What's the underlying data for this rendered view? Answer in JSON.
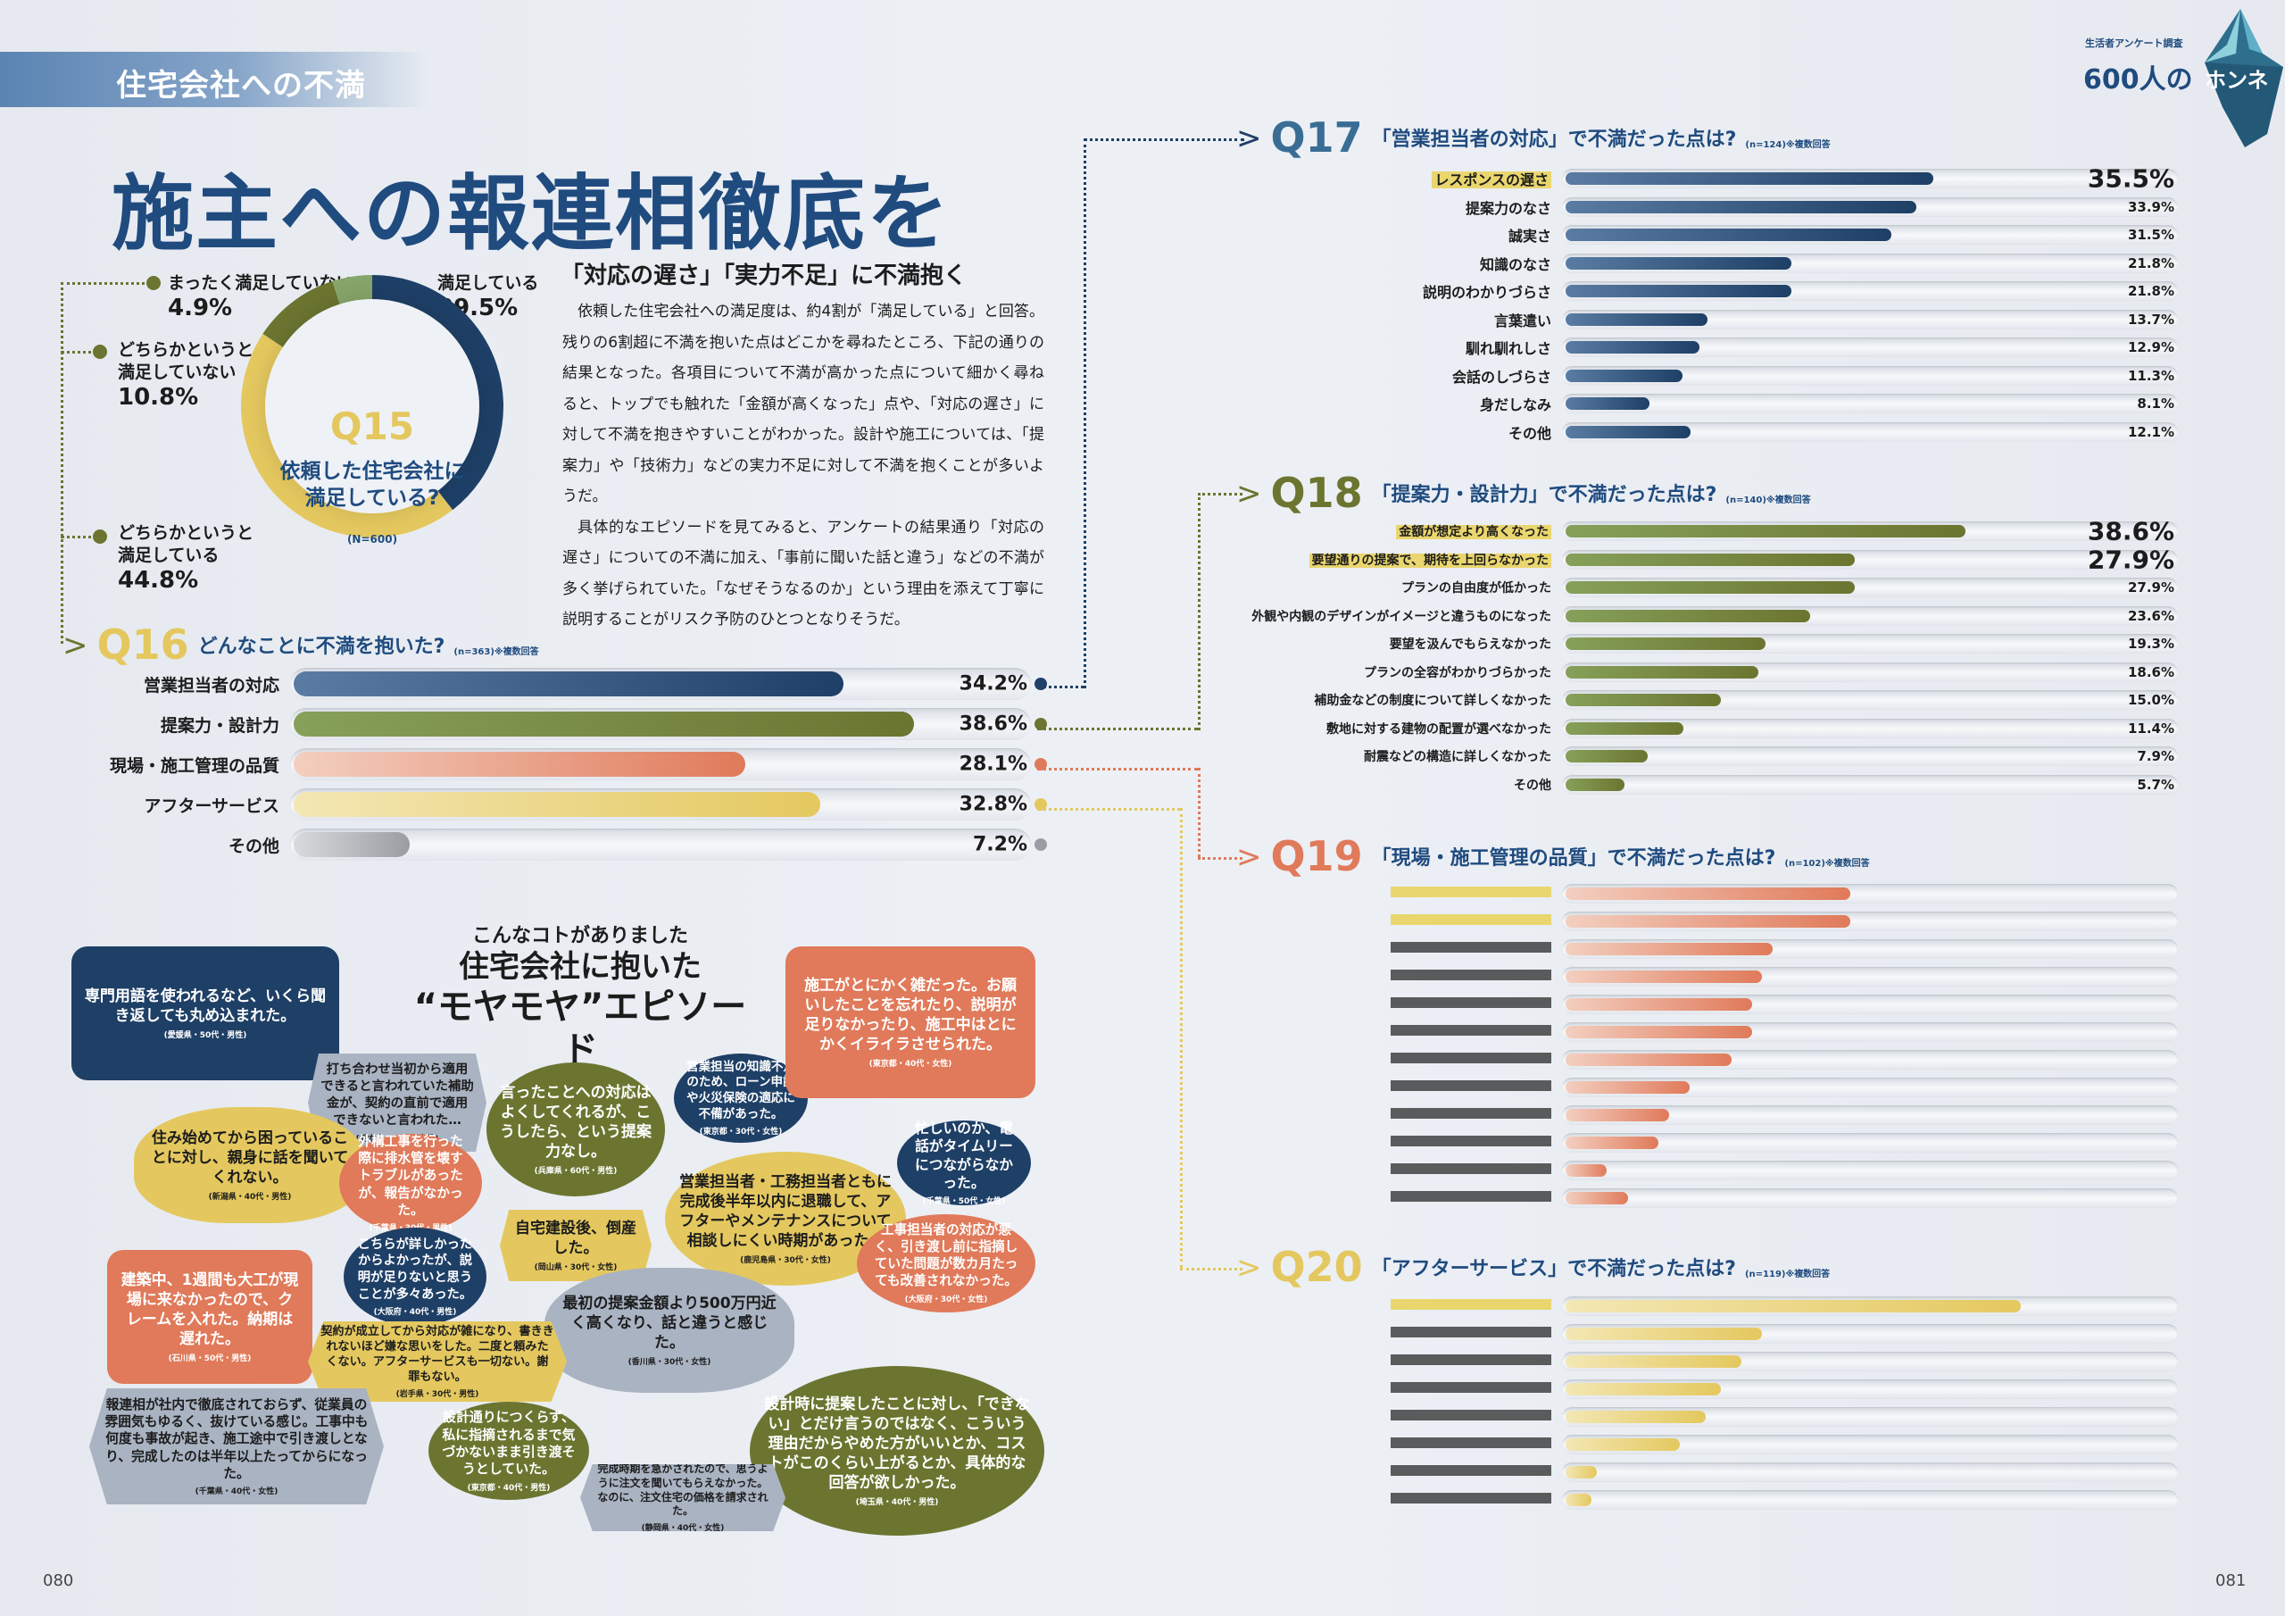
{
  "section_label": "住宅会社への不満",
  "headline": "施主への報連相徹底を",
  "badge": {
    "top": "生活者アンケート調査",
    "main_num": "600人の",
    "main_word": "ホンネ"
  },
  "q15": {
    "number": "Q15",
    "title_line1": "依頼した住宅会社に",
    "title_line2": "満足している?",
    "n": "(N=600)",
    "slices": [
      {
        "label_line1": "満足している",
        "label_line2": "",
        "value": 39.5,
        "pct": "39.5%",
        "color": "#1e3f66"
      },
      {
        "label_line1": "どちらかというと",
        "label_line2": "満足している",
        "value": 44.8,
        "pct": "44.8%",
        "color": "#e4c85f"
      },
      {
        "label_line1": "どちらかというと",
        "label_line2": "満足していない",
        "value": 10.8,
        "pct": "10.8%",
        "color": "#6b7530"
      },
      {
        "label_line1": "まったく満足していない",
        "label_line2": "",
        "value": 4.9,
        "pct": "4.9%",
        "color": "#86a56a"
      }
    ]
  },
  "article": {
    "subhead": "「対応の遅さ」「実力不足」に不満抱く",
    "paragraphs": [
      "依頼した住宅会社への満足度は、約4割が「満足している」と回答。残りの6割超に不満を抱いた点はどこかを尋ねたところ、下記の通りの結果となった。各項目について不満が高かった点について細かく尋ねると、トップでも触れた「金額が高くなった」点や、「対応の遅さ」に対して不満を抱きやすいことがわかった。設計や施工については、「提案力」や「技術力」などの実力不足に対して不満を抱くことが多いようだ。",
      "具体的なエピソードを見てみると、アンケートの結果通り「対応の遅さ」についての不満に加え、「事前に聞いた話と違う」などの不満が多く挙げられていた。「なぜそうなるのか」という理由を添えて丁寧に説明することがリスク予防のひとつとなりそうだ。"
    ]
  },
  "q16": {
    "number": "Q16",
    "title": "どんなことに不満を抱いた?",
    "note": "(n=363)※複数回答",
    "max": 40,
    "items": [
      {
        "label": "営業担当者の対応",
        "value": 34.2,
        "pct": "34.2%",
        "color": "#1e3f66",
        "from": "#5a7ca3"
      },
      {
        "label": "提案力・設計力",
        "value": 38.6,
        "pct": "38.6%",
        "color": "#6b7530",
        "from": "#86a05a"
      },
      {
        "label": "現場・施工管理の品質",
        "value": 28.1,
        "pct": "28.1%",
        "color": "#e07a5a",
        "from": "#f3cfc0"
      },
      {
        "label": "アフターサービス",
        "value": 32.8,
        "pct": "32.8%",
        "color": "#e4c85f",
        "from": "#f3e7b4"
      },
      {
        "label": "その他",
        "value": 7.2,
        "pct": "7.2%",
        "color": "#9a9da2",
        "from": "#d8dadd"
      }
    ]
  },
  "q17": {
    "number": "Q17",
    "title": "「営業担当者の対応」で不満だった点は?",
    "note": "(n=124)※複数回答",
    "color": "#1e3f66",
    "from": "#5a7ca3",
    "max": 50,
    "items": [
      {
        "label": "レスポンスの遅さ",
        "value": 35.5,
        "pct": "35.5%",
        "highlight": true
      },
      {
        "label": "提案力のなさ",
        "value": 33.9,
        "pct": "33.9%"
      },
      {
        "label": "誠実さ",
        "value": 31.5,
        "pct": "31.5%"
      },
      {
        "label": "知識のなさ",
        "value": 21.8,
        "pct": "21.8%"
      },
      {
        "label": "説明のわかりづらさ",
        "value": 21.8,
        "pct": "21.8%"
      },
      {
        "label": "言葉遣い",
        "value": 13.7,
        "pct": "13.7%"
      },
      {
        "label": "馴れ馴れしさ",
        "value": 12.9,
        "pct": "12.9%"
      },
      {
        "label": "会話のしづらさ",
        "value": 11.3,
        "pct": "11.3%"
      },
      {
        "label": "身だしなみ",
        "value": 8.1,
        "pct": "8.1%"
      },
      {
        "label": "その他",
        "value": 12.1,
        "pct": "12.1%"
      }
    ]
  },
  "q18": {
    "number": "Q18",
    "title": "「提案力・設計力」で不満だった点は?",
    "note": "(n=140)※複数回答",
    "color": "#6b7530",
    "from": "#86a05a",
    "max": 50,
    "items": [
      {
        "label": "金額が想定より高くなった",
        "value": 38.6,
        "pct": "38.6%",
        "highlight": true
      },
      {
        "label": "要望通りの提案で、期待を上回らなかった",
        "value": 27.9,
        "pct": "27.9%",
        "highlight": true
      },
      {
        "label": "プランの自由度が低かった",
        "value": 27.9,
        "pct": "27.9%"
      },
      {
        "label": "外観や内観のデザインがイメージと違うものになった",
        "value": 23.6,
        "pct": "23.6%"
      },
      {
        "label": "要望を汲んでもらえなかった",
        "value": 19.3,
        "pct": "19.3%"
      },
      {
        "label": "プランの全容がわかりづらかった",
        "value": 18.6,
        "pct": "18.6%"
      },
      {
        "label": "補助金などの制度について詳しくなかった",
        "value": 15.0,
        "pct": "15.0%"
      },
      {
        "label": "敷地に対する建物の配置が選べなかった",
        "value": 11.4,
        "pct": "11.4%"
      },
      {
        "label": "耐震などの構造に詳しくなかった",
        "value": 7.9,
        "pct": "7.9%"
      },
      {
        "label": "その他",
        "value": 5.7,
        "pct": "5.7%"
      }
    ]
  },
  "q19": {
    "number": "Q19",
    "title": "「現場・施工管理の品質」で不満だった点は?",
    "note": "(n=102)※複数回答",
    "color": "#e07a5a",
    "from": "#f3cfc0",
    "max": 50,
    "items": [
      {
        "label": "",
        "value": 27.5,
        "pct": "",
        "highlight": true
      },
      {
        "label": "",
        "value": 27.5,
        "pct": "",
        "highlight": true
      },
      {
        "label": "",
        "value": 20,
        "pct": ""
      },
      {
        "label": "",
        "value": 19,
        "pct": ""
      },
      {
        "label": "",
        "value": 18,
        "pct": ""
      },
      {
        "label": "",
        "value": 18,
        "pct": ""
      },
      {
        "label": "",
        "value": 16,
        "pct": ""
      },
      {
        "label": "",
        "value": 12,
        "pct": ""
      },
      {
        "label": "",
        "value": 10,
        "pct": ""
      },
      {
        "label": "",
        "value": 9,
        "pct": ""
      },
      {
        "label": "",
        "value": 4,
        "pct": ""
      },
      {
        "label": "",
        "value": 6,
        "pct": ""
      }
    ]
  },
  "q20": {
    "number": "Q20",
    "title": "「アフターサービス」で不満だった点は?",
    "note": "(n=119)※複数回答",
    "color": "#e4c85f",
    "from": "#f3e7b4",
    "max": 50,
    "items": [
      {
        "label": "",
        "value": 44,
        "pct": "",
        "highlight": true
      },
      {
        "label": "",
        "value": 19,
        "pct": ""
      },
      {
        "label": "",
        "value": 17,
        "pct": ""
      },
      {
        "label": "",
        "value": 15,
        "pct": ""
      },
      {
        "label": "",
        "value": 13.5,
        "pct": ""
      },
      {
        "label": "",
        "value": 11,
        "pct": ""
      },
      {
        "label": "",
        "value": 3,
        "pct": ""
      },
      {
        "label": "",
        "value": 2.5,
        "pct": ""
      }
    ]
  },
  "episodes": {
    "kicker": "こんなコトがありました",
    "title_line1": "住宅会社に抱いた",
    "title_line2": "“モヤモヤ”エピソード",
    "items": [
      {
        "text": "専門用語を使われるなど、いくら聞き返しても丸め込まれた。",
        "who": "(愛媛県・50代・男性)",
        "color": "#1e3f66",
        "fg": "#ffffff"
      },
      {
        "text": "打ち合わせ当初から適用できると言われていた補助金が、契約の直前で適用できないと言われた…",
        "who": "(栃木県・30代・女性)",
        "color": "#a9b3c2",
        "fg": "#1c1c1c"
      },
      {
        "text": "言ったことへの対応はよくしてくれるが、こうしたら、という提案力なし。",
        "who": "(兵庫県・60代・男性)",
        "color": "#6b7530",
        "fg": "#ffffff"
      },
      {
        "text": "営業担当の知識不足のため、ローン申請や火災保険の適応に不備があった。",
        "who": "(東京都・30代・女性)",
        "color": "#1e3f66",
        "fg": "#ffffff"
      },
      {
        "text": "施工がとにかく雑だった。お願いしたことを忘れたり、説明が足りなかったり、施工中はとにかくイライラさせられた。",
        "who": "(東京都・40代・女性)",
        "color": "#e07a5a",
        "fg": "#ffffff"
      },
      {
        "text": "住み始めてから困っていることに対し、親身に話を聞いてくれない。",
        "who": "(新潟県・40代・男性)",
        "color": "#e4c85f",
        "fg": "#1c1c1c"
      },
      {
        "text": "外構工事を行った際に排水管を壊すトラブルがあったが、報告がなかった。",
        "who": "(千葉県・30代・男性)",
        "color": "#e07a5a",
        "fg": "#ffffff"
      },
      {
        "text": "営業担当者・工務担当者ともに完成後半年以内に退職して、アフターやメンテナンスについて相談しにくい時期があった。",
        "who": "(鹿児島県・30代・女性)",
        "color": "#e4c85f",
        "fg": "#1c1c1c"
      },
      {
        "text": "忙しいのか、電話がタイムリーにつながらなかった。",
        "who": "(千葉県・50代・女性)",
        "color": "#1e3f66",
        "fg": "#ffffff"
      },
      {
        "text": "自宅建設後、倒産した。",
        "who": "(岡山県・30代・女性)",
        "color": "#e4c85f",
        "fg": "#1c1c1c"
      },
      {
        "text": "こちらが詳しかったからよかったが、説明が足りないと思うことが多々あった。",
        "who": "(大阪府・40代・男性)",
        "color": "#1e3f66",
        "fg": "#ffffff"
      },
      {
        "text": "建築中、1週間も大工が現場に来なかったので、クレームを入れた。納期は遅れた。",
        "who": "(石川県・50代・男性)",
        "color": "#e07a5a",
        "fg": "#ffffff"
      },
      {
        "text": "最初の提案金額より500万円近く高くなり、話と違うと感じた。",
        "who": "(香川県・30代・女性)",
        "color": "#a9b3c2",
        "fg": "#1c1c1c"
      },
      {
        "text": "工事担当者の対応が悪く、引き渡し前に指摘していた問題が数カ月たっても改善されなかった。",
        "who": "(大阪府・30代・女性)",
        "color": "#e07a5a",
        "fg": "#ffffff"
      },
      {
        "text": "契約が成立してから対応が雑になり、書ききれないほど嫌な思いをした。二度と頼みたくない。アフターサービスも一切ない。謝罪もない。",
        "who": "(岩手県・30代・男性)",
        "color": "#e4c85f",
        "fg": "#1c1c1c"
      },
      {
        "text": "設計時に提案したことに対し、「できない」とだけ言うのではなく、こういう理由だからやめた方がいいとか、コストがこのくらい上がるとか、具体的な回答が欲しかった。",
        "who": "(埼玉県・40代・男性)",
        "color": "#6b7530",
        "fg": "#ffffff"
      },
      {
        "text": "報連相が社内で徹底されておらず、従業員の雰囲気もゆるく、抜けている感じ。工事中も何度も事故が起き、施工途中で引き渡しとなり、完成したのは半年以上たってからになった。",
        "who": "(千葉県・40代・女性)",
        "color": "#a9b3c2",
        "fg": "#1c1c1c"
      },
      {
        "text": "設計通りにつくらず、私に指摘されるまで気づかないまま引き渡そうとしていた。",
        "who": "(東京都・40代・男性)",
        "color": "#6b7530",
        "fg": "#ffffff"
      },
      {
        "text": "完成時期を急かされたので、思うように注文を聞いてもらえなかった。なのに、注文住宅の価格を請求された。",
        "who": "(静岡県・40代・女性)",
        "color": "#a9b3c2",
        "fg": "#1c1c1c"
      }
    ]
  },
  "page_left": "080",
  "page_right": "081"
}
